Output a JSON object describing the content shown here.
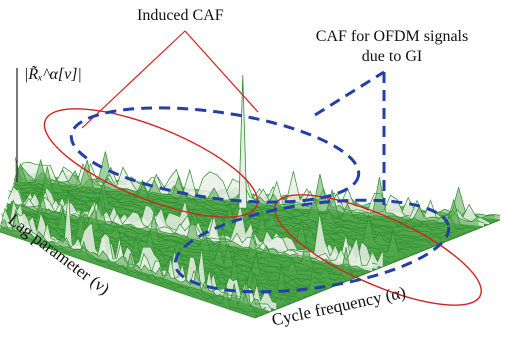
{
  "chart_data": {
    "type": "surface3d",
    "title": "",
    "xlabel": "Cycle frequency (α)",
    "ylabel": "Lag parameter (ν)",
    "zlabel": "|R̃ₓ^α[ν]|",
    "grid": false,
    "legend": false,
    "surface_color": "#2f8f2f",
    "peak_color": "#e9efe6",
    "features": [
      {
        "name": "dominant peak",
        "x_norm": 0.5,
        "y_norm": 0.88,
        "height_rel": 1.0
      },
      {
        "name": "front ridge of peaks",
        "y_norm": 0.92,
        "height_rel": 0.45
      },
      {
        "name": "middle ridge of peaks",
        "y_norm": 0.5,
        "height_rel": 0.35
      },
      {
        "name": "back ridge of peaks",
        "y_norm": 0.06,
        "height_rel": 0.4
      }
    ]
  },
  "annotations": {
    "induced_caf": "Induced CAF",
    "ofdm_line1": "CAF for OFDM signals",
    "ofdm_line2": "due to GI",
    "red_color": "#d42323",
    "blue_color": "#2340a8"
  }
}
